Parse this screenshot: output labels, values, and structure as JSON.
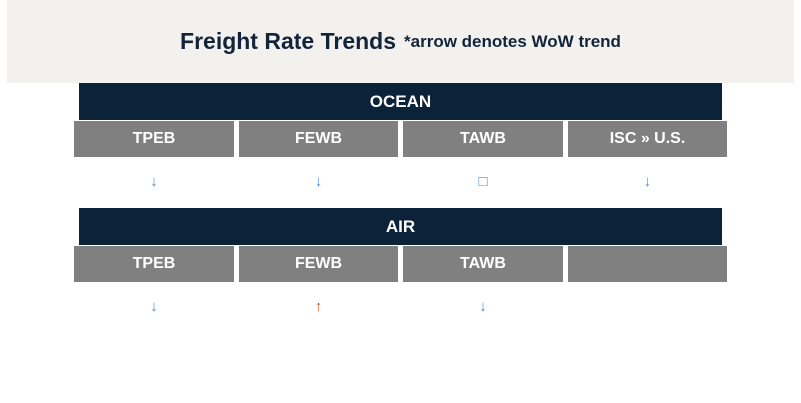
{
  "header": {
    "title": "Freight Rate Trends",
    "subtitle": "*arrow denotes WoW trend"
  },
  "sections": [
    {
      "name": "OCEAN",
      "lanes": [
        "TPEB",
        "FEWB",
        "TAWB",
        "ISC » U.S."
      ],
      "trends": [
        {
          "symbol": "↓",
          "color": "#4a8fd4"
        },
        {
          "symbol": "↓",
          "color": "#4a8fd4"
        },
        {
          "symbol": "□",
          "color": "#4a8fd4"
        },
        {
          "symbol": "↓",
          "color": "#4a8fd4"
        }
      ]
    },
    {
      "name": "AIR",
      "lanes": [
        "TPEB",
        "FEWB",
        "TAWB"
      ],
      "trends": [
        {
          "symbol": "↓",
          "color": "#4a8fd4"
        },
        {
          "symbol": "↑",
          "color": "#c8621e"
        },
        {
          "symbol": "↓",
          "color": "#4a8fd4"
        }
      ]
    }
  ]
}
